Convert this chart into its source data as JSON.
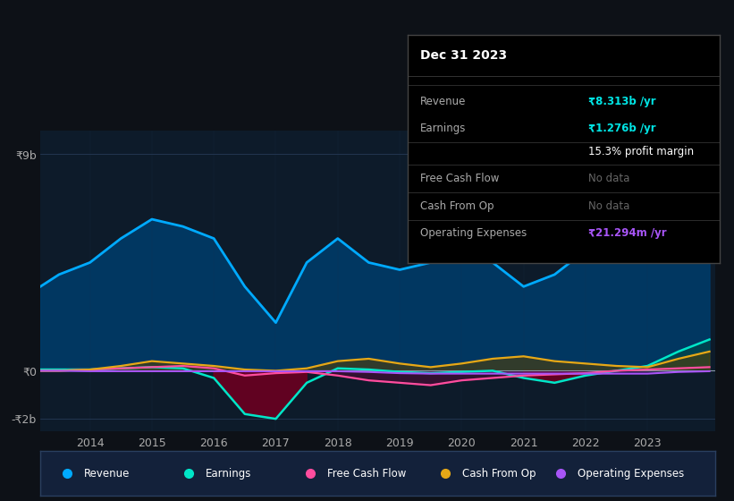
{
  "bg_color": "#0d1117",
  "plot_bg_color": "#0d1b2a",
  "y_label_top": "₹9b",
  "y_label_zero": "₹0",
  "y_label_bottom": "-₹2b",
  "x_ticks": [
    2014,
    2015,
    2016,
    2017,
    2018,
    2019,
    2020,
    2021,
    2022,
    2023
  ],
  "years": [
    2013.2,
    2013.5,
    2014.0,
    2014.5,
    2015.0,
    2015.5,
    2016.0,
    2016.5,
    2017.0,
    2017.5,
    2018.0,
    2018.5,
    2019.0,
    2019.5,
    2020.0,
    2020.5,
    2021.0,
    2021.5,
    2022.0,
    2022.5,
    2023.0,
    2023.5,
    2024.0
  ],
  "revenue": [
    3.5,
    4.0,
    4.5,
    5.5,
    6.3,
    6.0,
    5.5,
    3.5,
    2.0,
    4.5,
    5.5,
    4.5,
    4.2,
    4.5,
    4.8,
    4.5,
    3.5,
    4.0,
    5.0,
    6.5,
    7.5,
    8.8,
    9.2
  ],
  "earnings": [
    0.05,
    0.05,
    0.05,
    0.1,
    0.15,
    0.1,
    -0.3,
    -1.8,
    -2.0,
    -0.5,
    0.1,
    0.05,
    -0.05,
    -0.1,
    -0.05,
    0.0,
    -0.3,
    -0.5,
    -0.2,
    0.0,
    0.2,
    0.8,
    1.3
  ],
  "free_cash_flow": [
    0.0,
    0.0,
    0.05,
    0.1,
    0.15,
    0.2,
    0.1,
    -0.2,
    -0.1,
    -0.05,
    -0.2,
    -0.4,
    -0.5,
    -0.6,
    -0.4,
    -0.3,
    -0.2,
    -0.15,
    -0.1,
    0.0,
    0.05,
    0.1,
    0.15
  ],
  "cash_from_op": [
    0.0,
    0.0,
    0.05,
    0.2,
    0.4,
    0.3,
    0.2,
    0.05,
    0.0,
    0.1,
    0.4,
    0.5,
    0.3,
    0.15,
    0.3,
    0.5,
    0.6,
    0.4,
    0.3,
    0.2,
    0.15,
    0.5,
    0.8
  ],
  "operating_expenses": [
    0.0,
    0.0,
    -0.02,
    -0.02,
    -0.02,
    -0.02,
    -0.02,
    -0.02,
    -0.02,
    -0.02,
    -0.02,
    -0.05,
    -0.1,
    -0.12,
    -0.12,
    -0.12,
    -0.12,
    -0.12,
    -0.12,
    -0.12,
    -0.12,
    -0.05,
    -0.02
  ],
  "revenue_color": "#00aaff",
  "revenue_fill_color": "#003d6b",
  "earnings_color": "#00e6c8",
  "free_cash_flow_color": "#ff4d9e",
  "cash_from_op_color": "#e6a817",
  "operating_expenses_color": "#a855f7",
  "legend_bg": "#13213a",
  "legend_border": "#2a3f5f",
  "ylim": [
    -2.5,
    10.0
  ],
  "xlim": [
    2013.2,
    2024.1
  ],
  "tooltip": {
    "title": "Dec 31 2023",
    "rows": [
      {
        "label": "Revenue",
        "value": "₹8.313b /yr",
        "value_color": "#00e5e5"
      },
      {
        "label": "Earnings",
        "value": "₹1.276b /yr",
        "value_color": "#00e5e5"
      },
      {
        "label": "",
        "value": "15.3% profit margin",
        "value_color": "#ffffff"
      },
      {
        "label": "Free Cash Flow",
        "value": "No data",
        "value_color": "#666666"
      },
      {
        "label": "Cash From Op",
        "value": "No data",
        "value_color": "#666666"
      },
      {
        "label": "Operating Expenses",
        "value": "₹21.294m /yr",
        "value_color": "#a855f7"
      }
    ]
  },
  "legend_items": [
    {
      "color": "#00aaff",
      "label": "Revenue"
    },
    {
      "color": "#00e6c8",
      "label": "Earnings"
    },
    {
      "color": "#ff4d9e",
      "label": "Free Cash Flow"
    },
    {
      "color": "#e6a817",
      "label": "Cash From Op"
    },
    {
      "color": "#a855f7",
      "label": "Operating Expenses"
    }
  ]
}
